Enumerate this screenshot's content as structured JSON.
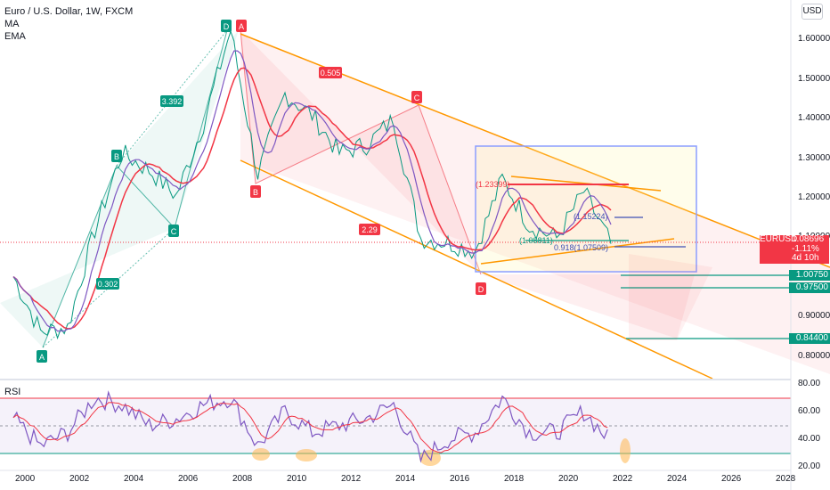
{
  "legend": {
    "title": "Euro / U.S. Dollar, 1W, FXCM",
    "ma": "MA",
    "ema": "EMA"
  },
  "rsi_label": "RSI",
  "currency_button": "USD",
  "price_axis": [
    "1.60000",
    "1.50000",
    "1.40000",
    "1.30000",
    "1.20000",
    "1.10000",
    "0.90000",
    "0.80000"
  ],
  "rsi_axis": [
    "80.00",
    "60.00",
    "40.00",
    "20.00"
  ],
  "time_axis": [
    "2000",
    "2002",
    "2004",
    "2006",
    "2008",
    "2010",
    "2012",
    "2014",
    "2016",
    "2018",
    "2020",
    "2022",
    "2024",
    "2026",
    "2028"
  ],
  "price_tag": {
    "symbol": "EURUSD",
    "price": "1.08696",
    "change": "-1.11%",
    "countdown": "4d 10h"
  },
  "level_tags": [
    "1.00750",
    "0.97500",
    "0.84400"
  ],
  "markers": {
    "A1": "A",
    "B1": "B",
    "C1": "C",
    "D1": "D",
    "A2": "A",
    "B2": "B",
    "C2": "C",
    "D2": "D"
  },
  "ratios": {
    "r1": "0.302",
    "r2": "3.392",
    "r3": "0.505",
    "r4": "2.29"
  },
  "fib_labels": {
    "f1": "(1.23399)",
    "f2": "(1.15224)",
    "f3": "(1.08811)",
    "f4": "0.918(1.07509)"
  },
  "colors": {
    "up": "#089981",
    "down": "#f23645",
    "rsi": "#7e57c2",
    "ma": "#f23645",
    "ema": "#7e57c2",
    "channel": "#ff9800",
    "box": "#8c9eff"
  },
  "chart_data": {
    "type": "line",
    "title": "Euro / U.S. Dollar, 1W, FXCM",
    "x": [
      "2000",
      "2001",
      "2002",
      "2003",
      "2004",
      "2005",
      "2006",
      "2007",
      "2008",
      "2009",
      "2010",
      "2011",
      "2012",
      "2013",
      "2014",
      "2015",
      "2016",
      "2017",
      "2018",
      "2019",
      "2020",
      "2021",
      "2022"
    ],
    "series": [
      {
        "name": "EURUSD",
        "values": [
          1.01,
          0.88,
          0.89,
          1.12,
          1.3,
          1.26,
          1.2,
          1.37,
          1.59,
          1.25,
          1.44,
          1.39,
          1.3,
          1.32,
          1.38,
          1.1,
          1.09,
          1.07,
          1.24,
          1.13,
          1.1,
          1.21,
          1.087
        ]
      }
    ],
    "ylim": [
      0.78,
      1.64
    ],
    "rsi": {
      "values": [
        55,
        35,
        45,
        70,
        65,
        50,
        55,
        65,
        70,
        35,
        60,
        45,
        50,
        55,
        65,
        25,
        40,
        45,
        70,
        45,
        45,
        60,
        38
      ],
      "ylim": [
        20,
        80
      ]
    }
  }
}
